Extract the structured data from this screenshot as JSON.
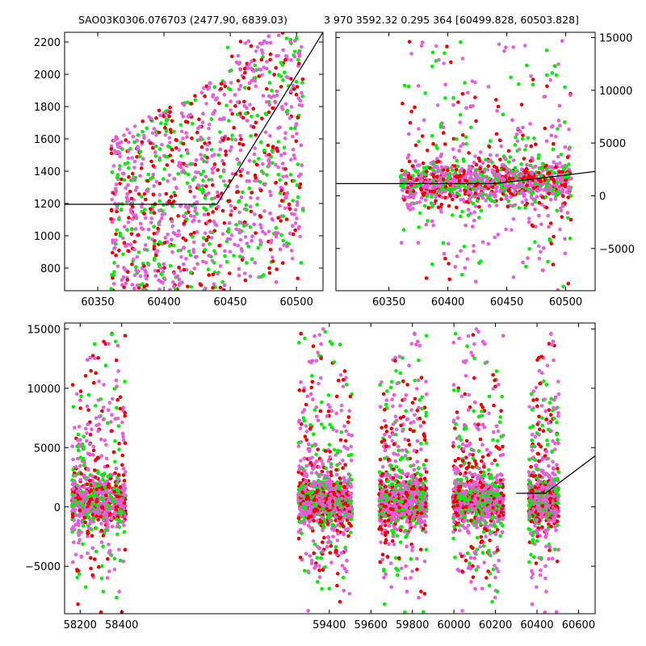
{
  "chart_data": {
    "type": "scatter",
    "titles": {
      "left": "SAO03K0306.076703 (2477.90, 6839.03)",
      "right": "3 970 3592.32 0.295 364 [60499.828, 60503.828]"
    },
    "colors": {
      "green": "#00ee00",
      "red": "#ee0000",
      "pink": "#ee55dd",
      "pink2": "#dd66dd",
      "line": "#000000"
    },
    "panels": [
      {
        "id": "top-left",
        "xlim": [
          60325,
          60520
        ],
        "ylim": [
          660,
          2260
        ],
        "xticks": [
          60350,
          60400,
          60450,
          60500
        ],
        "yticks": [
          800,
          1000,
          1200,
          1400,
          1600,
          1800,
          2000,
          2200
        ],
        "ytick_side": "left",
        "data_x_range": [
          60360,
          60505
        ],
        "scatter": {
          "center": 1450,
          "spread": 700,
          "min": 660,
          "max": 2260,
          "n": 1200
        },
        "model": [
          [
            60325,
            1195
          ],
          [
            60440,
            1195
          ],
          [
            60520,
            2260
          ]
        ]
      },
      {
        "id": "top-right",
        "xlim": [
          60305,
          60525
        ],
        "ylim": [
          -9000,
          15500
        ],
        "xticks": [
          60350,
          60400,
          60450,
          60500
        ],
        "yticks": [
          -5000,
          0,
          5000,
          10000,
          15000
        ],
        "ytick_side": "right",
        "data_x_range": [
          60360,
          60505
        ],
        "scatter": {
          "center": 1200,
          "spread": 900,
          "tail": 5000,
          "n": 1400
        },
        "model": [
          [
            60305,
            1150
          ],
          [
            60440,
            1150
          ],
          [
            60525,
            2300
          ]
        ]
      },
      {
        "id": "bottom",
        "xlim": [
          58125,
          60680
        ],
        "ylim": [
          -9000,
          15500
        ],
        "xticks": [
          58200,
          58400,
          59400,
          59600,
          59800,
          60000,
          60200,
          60400,
          60600
        ],
        "xtick_labels": [
          "58200",
          "58400",
          "59400",
          "59600",
          "59800",
          "60000",
          "60200",
          "60400",
          "60600"
        ],
        "yticks": [
          -5000,
          0,
          5000,
          10000,
          15000
        ],
        "ytick_side": "left",
        "clusters": [
          {
            "x": [
              58160,
              58420
            ],
            "n": 900
          },
          {
            "x": [
              59250,
              59510
            ],
            "n": 1100
          },
          {
            "x": [
              59640,
              59870
            ],
            "n": 1000
          },
          {
            "x": [
              59995,
              60240
            ],
            "n": 1000
          },
          {
            "x": [
              60360,
              60505
            ],
            "n": 700
          }
        ],
        "model": [
          [
            60300,
            1150
          ],
          [
            60440,
            1150
          ],
          [
            60680,
            4300
          ]
        ]
      }
    ]
  }
}
